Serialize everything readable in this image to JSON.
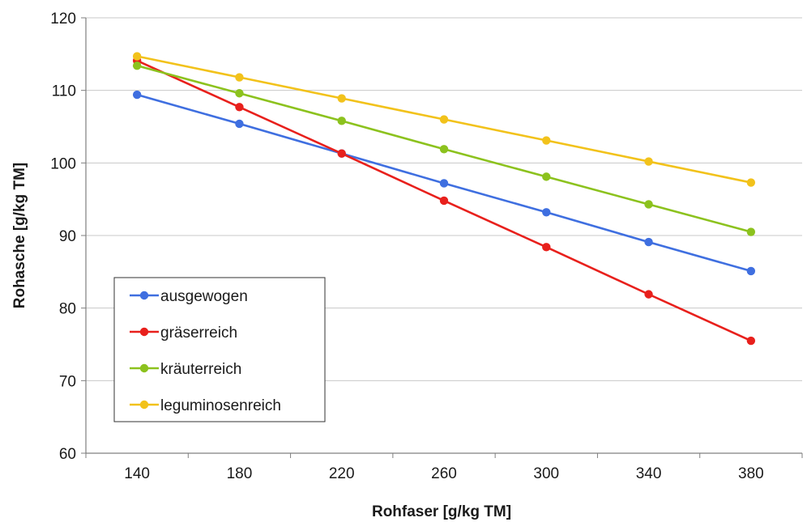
{
  "chart_data": {
    "type": "line",
    "xlabel": "Rohfaser [g/kg TM]",
    "ylabel": "Rohasche [g/kg TM]",
    "x": [
      140,
      180,
      220,
      260,
      300,
      340,
      380
    ],
    "xticks": [
      "140",
      "180",
      "220",
      "260",
      "300",
      "340",
      "380"
    ],
    "yticks": [
      "60",
      "70",
      "80",
      "90",
      "100",
      "110",
      "120"
    ],
    "ylim": [
      60,
      120
    ],
    "grid": "horizontal",
    "legend_position": "bottom-left",
    "series": [
      {
        "name": "ausgewogen",
        "color": "#3f6fe0",
        "values": [
          109.4,
          105.4,
          101.3,
          97.2,
          93.2,
          89.1,
          85.1
        ]
      },
      {
        "name": "gräserreich",
        "color": "#e8201c",
        "values": [
          114.1,
          107.7,
          101.3,
          94.8,
          88.4,
          81.9,
          75.5
        ]
      },
      {
        "name": "kräuterreich",
        "color": "#8cc21e",
        "values": [
          113.4,
          109.6,
          105.8,
          101.9,
          98.1,
          94.3,
          90.5
        ]
      },
      {
        "name": "leguminosenreich",
        "color": "#f2c21b",
        "values": [
          114.7,
          111.8,
          108.9,
          106.0,
          103.1,
          100.2,
          97.3
        ]
      }
    ]
  }
}
